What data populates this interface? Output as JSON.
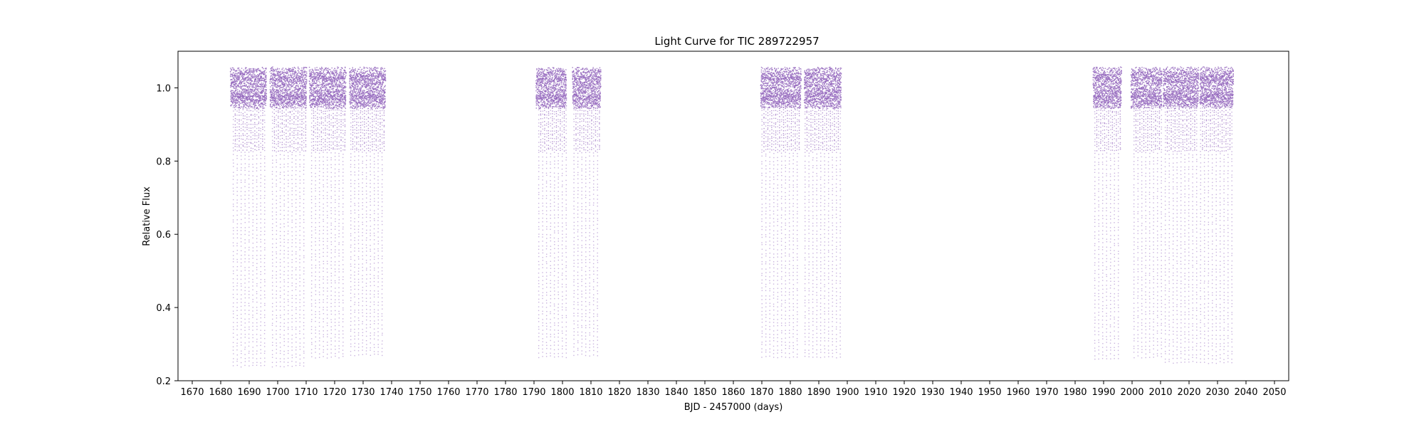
{
  "chart_data": {
    "type": "scatter",
    "title": "Light Curve for TIC 289722957",
    "xlabel": "BJD - 2457000 (days)",
    "ylabel": "Relative Flux",
    "xlim": [
      1665,
      2055
    ],
    "ylim": [
      0.2,
      1.1
    ],
    "xticks": [
      1670,
      1680,
      1690,
      1700,
      1710,
      1720,
      1730,
      1740,
      1750,
      1760,
      1770,
      1780,
      1790,
      1800,
      1810,
      1820,
      1830,
      1840,
      1850,
      1860,
      1870,
      1880,
      1890,
      1900,
      1910,
      1920,
      1930,
      1940,
      1950,
      1960,
      1970,
      1980,
      1990,
      2000,
      2010,
      2020,
      2030,
      2040,
      2050
    ],
    "yticks": [
      0.2,
      0.4,
      0.6,
      0.8,
      1.0
    ],
    "ytick_labels": [
      "0.2",
      "0.4",
      "0.6",
      "0.8",
      "1.0"
    ],
    "grid": false,
    "point_color": "#9467bd",
    "data_segments": [
      {
        "start": 1683.4,
        "end": 1696.1,
        "dip_floor": 0.24
      },
      {
        "start": 1697.3,
        "end": 1710.2,
        "dip_floor": 0.24
      },
      {
        "start": 1711.1,
        "end": 1724.0,
        "dip_floor": 0.265
      },
      {
        "start": 1725.2,
        "end": 1737.9,
        "dip_floor": 0.27
      },
      {
        "start": 1790.7,
        "end": 1801.4,
        "dip_floor": 0.265
      },
      {
        "start": 1803.5,
        "end": 1813.5,
        "dip_floor": 0.27
      },
      {
        "start": 1869.6,
        "end": 1883.8,
        "dip_floor": 0.265
      },
      {
        "start": 1884.9,
        "end": 1897.9,
        "dip_floor": 0.265
      },
      {
        "start": 1986.3,
        "end": 1996.3,
        "dip_floor": 0.26
      },
      {
        "start": 1999.6,
        "end": 2010.5,
        "dip_floor": 0.265
      },
      {
        "start": 2010.9,
        "end": 2023.4,
        "dip_floor": 0.25
      },
      {
        "start": 2023.8,
        "end": 2035.6,
        "dip_floor": 0.25
      }
    ],
    "baseline_flux": 1.0,
    "variability_amplitude": 0.05,
    "shallow_dip_level": 0.83,
    "dip_period_days": 1.375
  }
}
